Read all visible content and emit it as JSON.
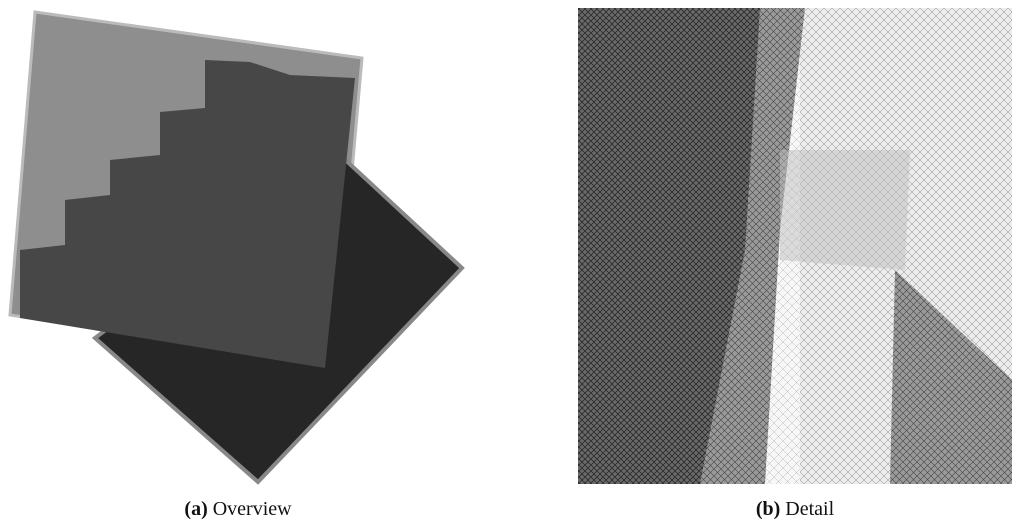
{
  "figures": [
    {
      "label": "(a)",
      "caption": "Overview"
    },
    {
      "label": "(b)",
      "caption": "Detail"
    }
  ]
}
